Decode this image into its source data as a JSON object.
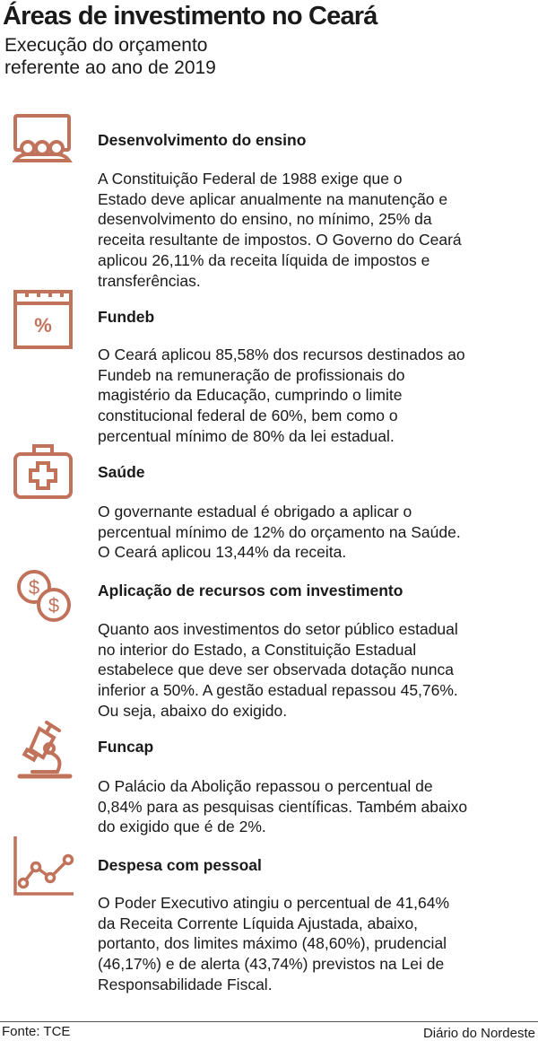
{
  "title": "Áreas de investimento no Ceará",
  "subtitle_lines": [
    "Execução do orçamento",
    "referente ao ano de 2019"
  ],
  "accent_color": "#c0735a",
  "sections": [
    {
      "icon": "classroom-icon",
      "heading": "Desenvolvimento do ensino",
      "lines": [
        "A Constituição Federal de 1988 exige que o",
        "Estado deve aplicar anualmente na manutenção e",
        "desenvolvimento do ensino, no mínimo, 25% da",
        "receita resultante de impostos. O Governo do Ceará",
        "aplicou 26,11% da receita líquida de impostos e",
        "transferências."
      ]
    },
    {
      "icon": "calendar-percent-icon",
      "heading": "Fundeb",
      "lines": [
        "O Ceará aplicou 85,58% dos recursos destinados ao",
        "Fundeb na remuneração de profissionais do",
        "magistério da Educação, cumprindo o limite",
        "constitucional federal de 60%, bem como o",
        "percentual mínimo de 80% da lei estadual."
      ]
    },
    {
      "icon": "medical-kit-icon",
      "heading": "Saúde",
      "lines": [
        "O governante estadual é obrigado a aplicar o",
        "percentual mínimo de 12% do orçamento na Saúde.",
        "O Ceará aplicou 13,44% da receita."
      ]
    },
    {
      "icon": "coins-icon",
      "heading": "Aplicação de recursos com investimento",
      "lines": [
        "Quanto aos investimentos do setor público estadual",
        "no interior do Estado, a Constituição Estadual",
        "estabelece que deve ser observada dotação nunca",
        "inferior a 50%. A gestão estadual repassou 45,76%.",
        "Ou seja, abaixo do exigido."
      ]
    },
    {
      "icon": "microscope-icon",
      "heading": "Funcap",
      "lines": [
        "O Palácio da Abolição repassou o percentual de",
        "0,84% para as pesquisas científicas. Também abaixo",
        "do exigido que é de 2%."
      ]
    },
    {
      "icon": "line-chart-icon",
      "heading": "Despesa com pessoal",
      "lines": [
        "O Poder Executivo atingiu o percentual de 41,64%",
        "da Receita Corrente Líquida Ajustada, abaixo,",
        "portanto, dos limites máximo (48,60%), prudencial",
        "(46,17%) e de alerta (43,74%) previstos na Lei de",
        "Responsabilidade Fiscal."
      ]
    }
  ],
  "footer": {
    "source": "Fonte: TCE",
    "credit": "Diário do Nordeste"
  }
}
